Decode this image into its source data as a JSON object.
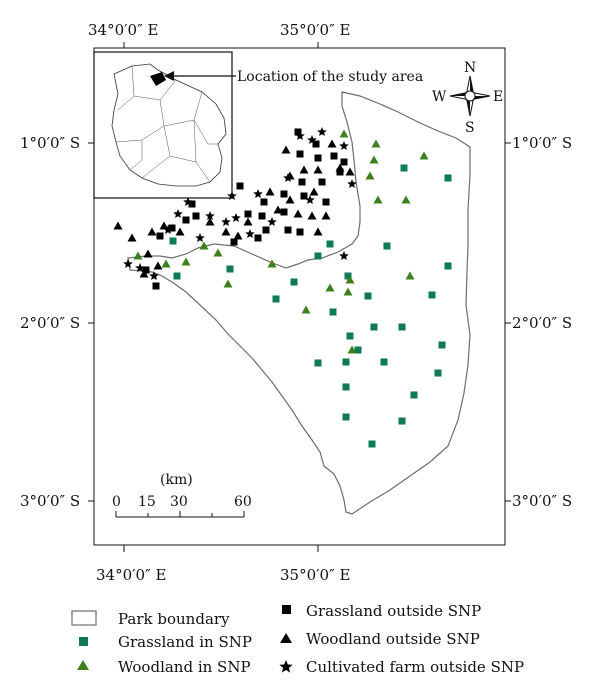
{
  "map": {
    "lon_labels_top": [
      "34°0′0″ E",
      "35°0′0″ E"
    ],
    "lon_labels_bottom": [
      "34°0′0″ E",
      "35°0′0″ E"
    ],
    "lat_labels_left": [
      "1°0′0″ S",
      "2°0′0″ S",
      "3°0′0″ S"
    ],
    "lat_labels_right": [
      "1°0′0″ S",
      "2°0′0″ S",
      "3°0′0″ S"
    ],
    "inset_label": "Location of the study area",
    "compass": {
      "n": "N",
      "s": "S",
      "e": "E",
      "w": "W"
    },
    "scale": {
      "unit": "(km)",
      "ticks": [
        "0",
        "15",
        "30",
        "60"
      ]
    }
  },
  "legend": {
    "park_boundary": "Park boundary",
    "grassland_in": "Grassland in SNP",
    "woodland_in": "Woodland in SNP",
    "grassland_out": "Grassland outside SNP",
    "woodland_out": "Woodland outside SNP",
    "farm_out": "Cultivated farm outside SNP"
  },
  "colors": {
    "inside_grassland": "#0e7a5a",
    "inside_woodland": "#3f7f1c",
    "outside": "#000000",
    "boundary": "#6d6d6d"
  },
  "icons": {
    "grassland": "square-marker",
    "woodland": "triangle-marker",
    "farm": "star-marker"
  }
}
